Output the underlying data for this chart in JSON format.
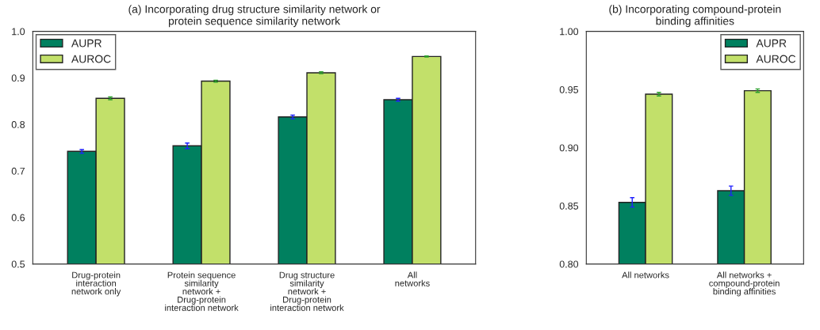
{
  "chart_data": [
    {
      "type": "bar",
      "title": "(a) Incorporating drug structure similarity network or\nprotein sequence similarity network",
      "categories": [
        "Drug-protein\ninteraction\nnetwork only",
        "Protein sequence\nsimilarity\nnetwork +\nDrug-protein\ninteraction network",
        "Drug structure\nsimilarity\nnetwork +\nDrug-protein\ninteraction network",
        "All\nnetworks"
      ],
      "series": [
        {
          "name": "AUPR",
          "color": "#00805f",
          "values": [
            0.742,
            0.754,
            0.816,
            0.853
          ],
          "errors": [
            0.004,
            0.006,
            0.004,
            0.003
          ]
        },
        {
          "name": "AUROC",
          "color": "#c2e06a",
          "values": [
            0.856,
            0.893,
            0.911,
            0.946
          ],
          "errors": [
            0.003,
            0.002,
            0.002,
            0.001
          ]
        }
      ],
      "ylim": [
        0.5,
        1.0
      ],
      "yticks": [
        {
          "value": 0.5,
          "label": "0.5"
        },
        {
          "value": 0.6,
          "label": "0.6"
        },
        {
          "value": 0.7,
          "label": "0.7"
        },
        {
          "value": 0.8,
          "label": "0.8"
        },
        {
          "value": 0.9,
          "label": "0.9"
        },
        {
          "value": 1.0,
          "label": "1.0"
        }
      ],
      "grid": false,
      "legend": "top left"
    },
    {
      "type": "bar",
      "title": "(b) Incorporating compound-protein\nbinding affinities",
      "categories": [
        "All networks",
        "All networks +\ncompound-protein\nbinding affinities"
      ],
      "series": [
        {
          "name": "AUPR",
          "color": "#00805f",
          "values": [
            0.853,
            0.863
          ],
          "errors": [
            0.004,
            0.004
          ]
        },
        {
          "name": "AUROC",
          "color": "#c2e06a",
          "values": [
            0.946,
            0.949
          ],
          "errors": [
            0.0015,
            0.0015
          ]
        }
      ],
      "ylim": [
        0.8,
        1.0
      ],
      "yticks": [
        {
          "value": 0.8,
          "label": "0.80"
        },
        {
          "value": 0.85,
          "label": "0.85"
        },
        {
          "value": 0.9,
          "label": "0.90"
        },
        {
          "value": 0.95,
          "label": "0.95"
        },
        {
          "value": 1.0,
          "label": "1.00"
        }
      ],
      "grid": false,
      "legend": "top right"
    }
  ]
}
